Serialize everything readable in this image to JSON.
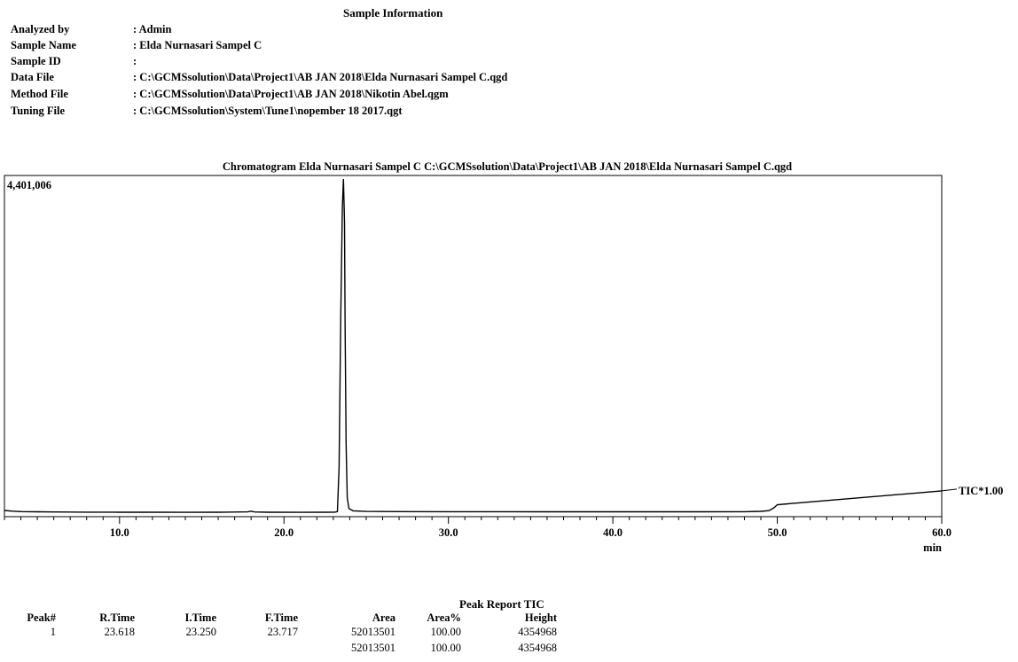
{
  "sample_info": {
    "title": "Sample Information",
    "rows": [
      {
        "label": "Analyzed by",
        "value": ": Admin"
      },
      {
        "label": "Sample Name",
        "value": ": Elda Nurnasari Sampel C"
      },
      {
        "label": "Sample ID",
        "value": ":"
      },
      {
        "label": "Data File",
        "value": ": C:\\GCMSsolution\\Data\\Project1\\AB JAN 2018\\Elda Nurnasari Sampel C.qgd"
      },
      {
        "label": "Method File",
        "value": ": C:\\GCMSsolution\\Data\\Project1\\AB JAN 2018\\Nikotin Abel.qgm"
      },
      {
        "label": "Tuning File",
        "value": ": C:\\GCMSsolution\\System\\Tune1\\nopember 18 2017.qgt"
      }
    ]
  },
  "chart_data": {
    "type": "line",
    "title": "Chromatogram Elda Nurnasari Sampel C C:\\GCMSsolution\\Data\\Project1\\AB JAN 2018\\Elda Nurnasari Sampel C.qgd",
    "y_max_label": "4,401,006",
    "xlabel": "min",
    "xlim": [
      3.0,
      60.0
    ],
    "ylim": [
      0,
      4401006
    ],
    "x_ticks": [
      10.0,
      20.0,
      30.0,
      40.0,
      50.0,
      60.0
    ],
    "x_tick_labels": [
      "10.0",
      "20.0",
      "30.0",
      "40.0",
      "50.0",
      "60.0"
    ],
    "grid": false,
    "series": [
      {
        "name": "TIC*1.00",
        "color": "#000000",
        "x": [
          3.0,
          3.5,
          4.0,
          5.0,
          6.0,
          8.0,
          10.0,
          12.0,
          14.0,
          16.0,
          17.8,
          18.0,
          18.2,
          19.0,
          21.0,
          22.5,
          23.1,
          23.25,
          23.35,
          23.45,
          23.55,
          23.618,
          23.68,
          23.72,
          23.78,
          23.85,
          23.95,
          24.2,
          25.0,
          27.0,
          30.0,
          33.0,
          36.0,
          39.0,
          42.0,
          45.0,
          48.0,
          49.0,
          49.5,
          49.8,
          50.0,
          60.0
        ],
        "y": [
          35000,
          25000,
          20000,
          17000,
          15000,
          13000,
          12000,
          11000,
          10500,
          11000,
          16000,
          25000,
          15000,
          11000,
          10500,
          11000,
          13000,
          20000,
          600000,
          2500000,
          4000000,
          4354968,
          3800000,
          2400000,
          900000,
          200000,
          60000,
          30000,
          22000,
          20000,
          19000,
          18000,
          17500,
          17000,
          17000,
          17500,
          19000,
          23000,
          32000,
          70000,
          110000,
          290000
        ]
      }
    ]
  },
  "peak_report": {
    "title": "Peak Report TIC",
    "headers": [
      "Peak#",
      "R.Time",
      "I.Time",
      "F.Time",
      "Area",
      "Area%",
      "Height"
    ],
    "rows": [
      [
        "1",
        "23.618",
        "23.250",
        "23.717",
        "52013501",
        "100.00",
        "4354968"
      ],
      [
        "",
        "",
        "",
        "",
        "52013501",
        "100.00",
        "4354968"
      ]
    ]
  }
}
